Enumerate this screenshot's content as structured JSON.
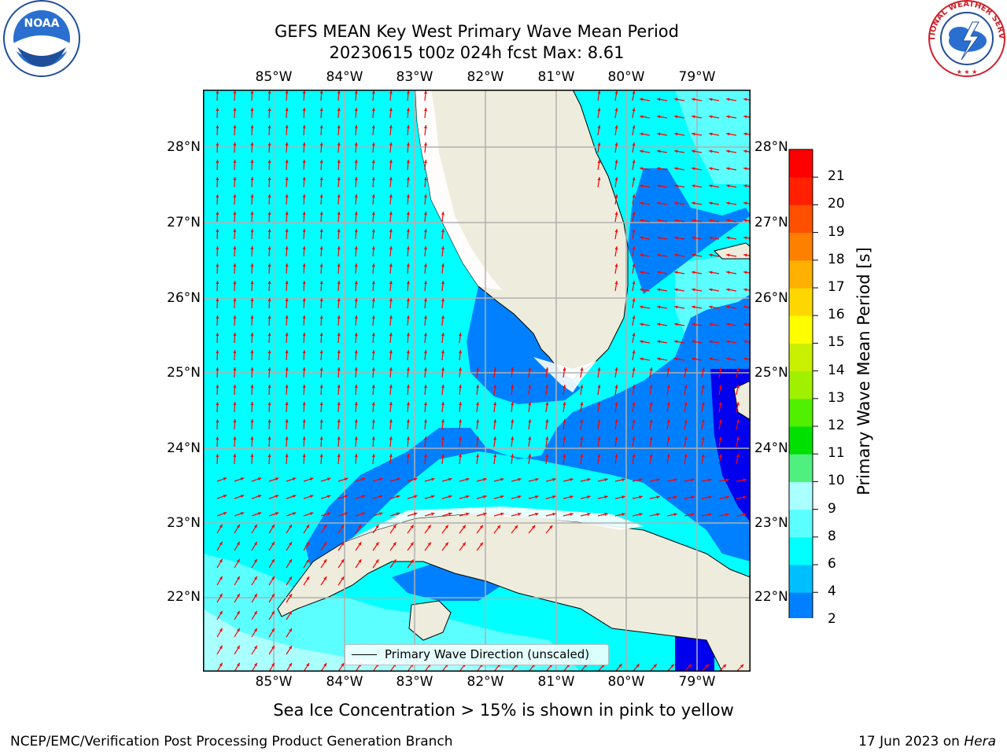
{
  "title": {
    "line1": "GEFS MEAN Key West Primary Wave Mean Period",
    "line2": "20230615 t00z 024h fcst   Max: 8.61"
  },
  "logos": {
    "left": {
      "name": "noaa-logo",
      "text": "NOAA"
    },
    "right": {
      "name": "national-weather-service-logo",
      "text": "NATIONAL WEATHER SERVICE"
    }
  },
  "map": {
    "lon_labels": [
      "85°W",
      "84°W",
      "83°W",
      "82°W",
      "81°W",
      "80°W",
      "79°W"
    ],
    "lat_labels": [
      "28°N",
      "27°N",
      "26°N",
      "25°N",
      "24°N",
      "23°N",
      "22°N"
    ],
    "legend": "Primary Wave Direction (unscaled)",
    "colors": {
      "land": "#eeecdc",
      "coast": "#000000",
      "grid": "#b0b0b0",
      "arrows": "#ff0000"
    }
  },
  "colorbar": {
    "label": "Primary Wave Mean Period [s]",
    "ticks": [
      "2",
      "4",
      "6",
      "8",
      "9",
      "10",
      "11",
      "12",
      "13",
      "14",
      "15",
      "16",
      "17",
      "18",
      "19",
      "20",
      "21"
    ],
    "colors": [
      "#0000ee",
      "#0080ff",
      "#00bfff",
      "#00ffff",
      "#5bffff",
      "#aaffff",
      "#50f080",
      "#00e000",
      "#50f000",
      "#a0f000",
      "#c8f000",
      "#ffff00",
      "#ffd700",
      "#ffb000",
      "#ff8000",
      "#ff5000",
      "#ff2000",
      "#ff0000"
    ]
  },
  "subnote": "Sea Ice Concentration > 15% is shown in pink to yellow",
  "footer": {
    "left": "NCEP/EMC/Verification Post Processing Product Generation Branch",
    "right_date": "17 Jun 2023 on",
    "right_host": "Hera"
  }
}
